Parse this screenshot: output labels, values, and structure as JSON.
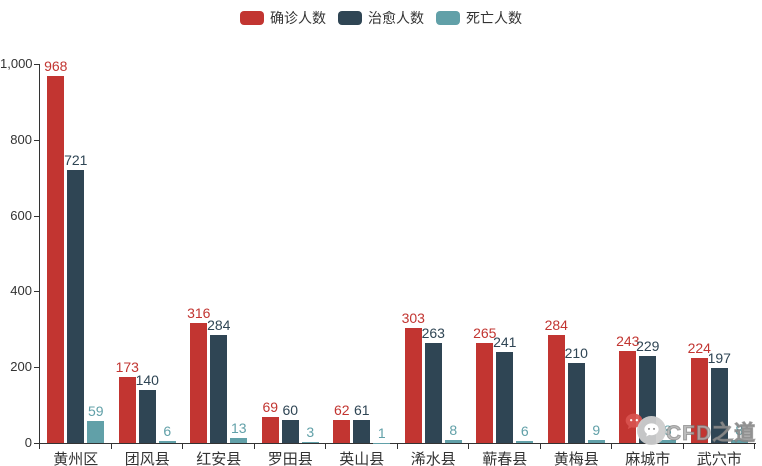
{
  "chart_data": {
    "type": "bar",
    "categories": [
      "黄州区",
      "团风县",
      "红安县",
      "罗田县",
      "英山县",
      "浠水县",
      "蕲春县",
      "黄梅县",
      "麻城市",
      "武穴市"
    ],
    "series": [
      {
        "name": "确诊人数",
        "color": "#c23531",
        "values": [
          968,
          173,
          316,
          69,
          62,
          303,
          265,
          284,
          243,
          224
        ]
      },
      {
        "name": "治愈人数",
        "color": "#2f4554",
        "values": [
          721,
          140,
          284,
          60,
          61,
          263,
          241,
          210,
          229,
          197
        ]
      },
      {
        "name": "死亡人数",
        "color": "#61a0a8",
        "values": [
          59,
          6,
          13,
          3,
          1,
          8,
          6,
          9,
          8,
          8
        ]
      }
    ],
    "title": "",
    "xlabel": "",
    "ylabel": "",
    "ylim": [
      0,
      1000
    ],
    "yticks": [
      {
        "value": 0,
        "label": "0"
      },
      {
        "value": 200,
        "label": "200"
      },
      {
        "value": 400,
        "label": "400"
      },
      {
        "value": 600,
        "label": "600"
      },
      {
        "value": 800,
        "label": "800"
      },
      {
        "value": 1000,
        "label": "1,000"
      }
    ],
    "grid": false,
    "legend_position": "top",
    "value_labels": true,
    "axis_color": "#333333",
    "background_color": "#ffffff"
  },
  "watermark": {
    "icon": "wechat-badge-icon",
    "text": "CFD之道"
  }
}
